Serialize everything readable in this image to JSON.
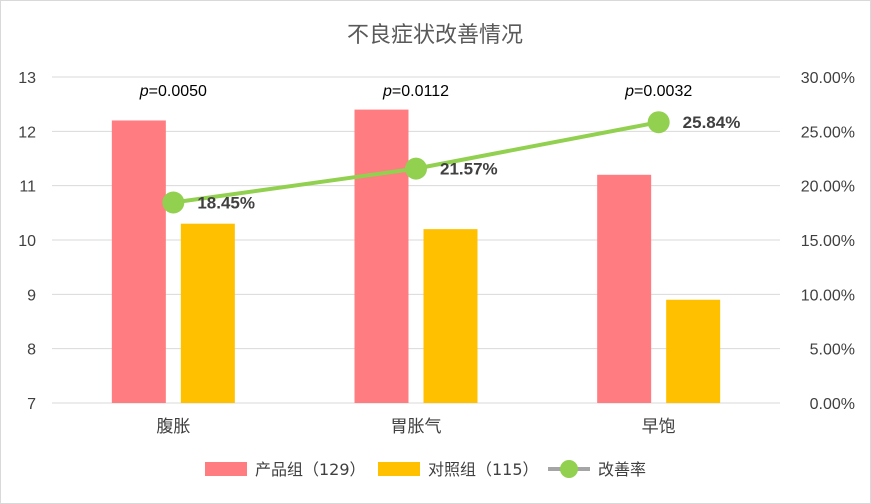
{
  "chart_data": {
    "type": "bar",
    "title": "不良症状改善情况",
    "categories": [
      "腹胀",
      "胃胀气",
      "早饱"
    ],
    "series": [
      {
        "name": "产品组（129）",
        "kind": "bar",
        "axis": "left",
        "color": "#FF7C80",
        "values": [
          12.2,
          12.4,
          11.2
        ]
      },
      {
        "name": "对照组（115）",
        "kind": "bar",
        "axis": "left",
        "color": "#FFC000",
        "values": [
          10.3,
          10.2,
          8.9
        ]
      },
      {
        "name": "改善率",
        "kind": "line",
        "axis": "right",
        "color": "#92D050",
        "values": [
          18.45,
          21.57,
          25.84
        ],
        "labels": [
          "18.45%",
          "21.57%",
          "25.84%"
        ]
      }
    ],
    "y_left": {
      "min": 7,
      "max": 13,
      "ticks": [
        "7",
        "8",
        "9",
        "10",
        "11",
        "12",
        "13"
      ]
    },
    "y_right": {
      "min": 0,
      "max": 30,
      "ticks": [
        "0.00%",
        "5.00%",
        "10.00%",
        "15.00%",
        "20.00%",
        "25.00%",
        "30.00%"
      ]
    },
    "annotations": [
      {
        "prefix": "p",
        "value": "=0.0050"
      },
      {
        "prefix": "p",
        "value": "=0.0112"
      },
      {
        "prefix": "p",
        "value": "=0.0032"
      }
    ],
    "grid": true,
    "legend_position": "bottom"
  }
}
